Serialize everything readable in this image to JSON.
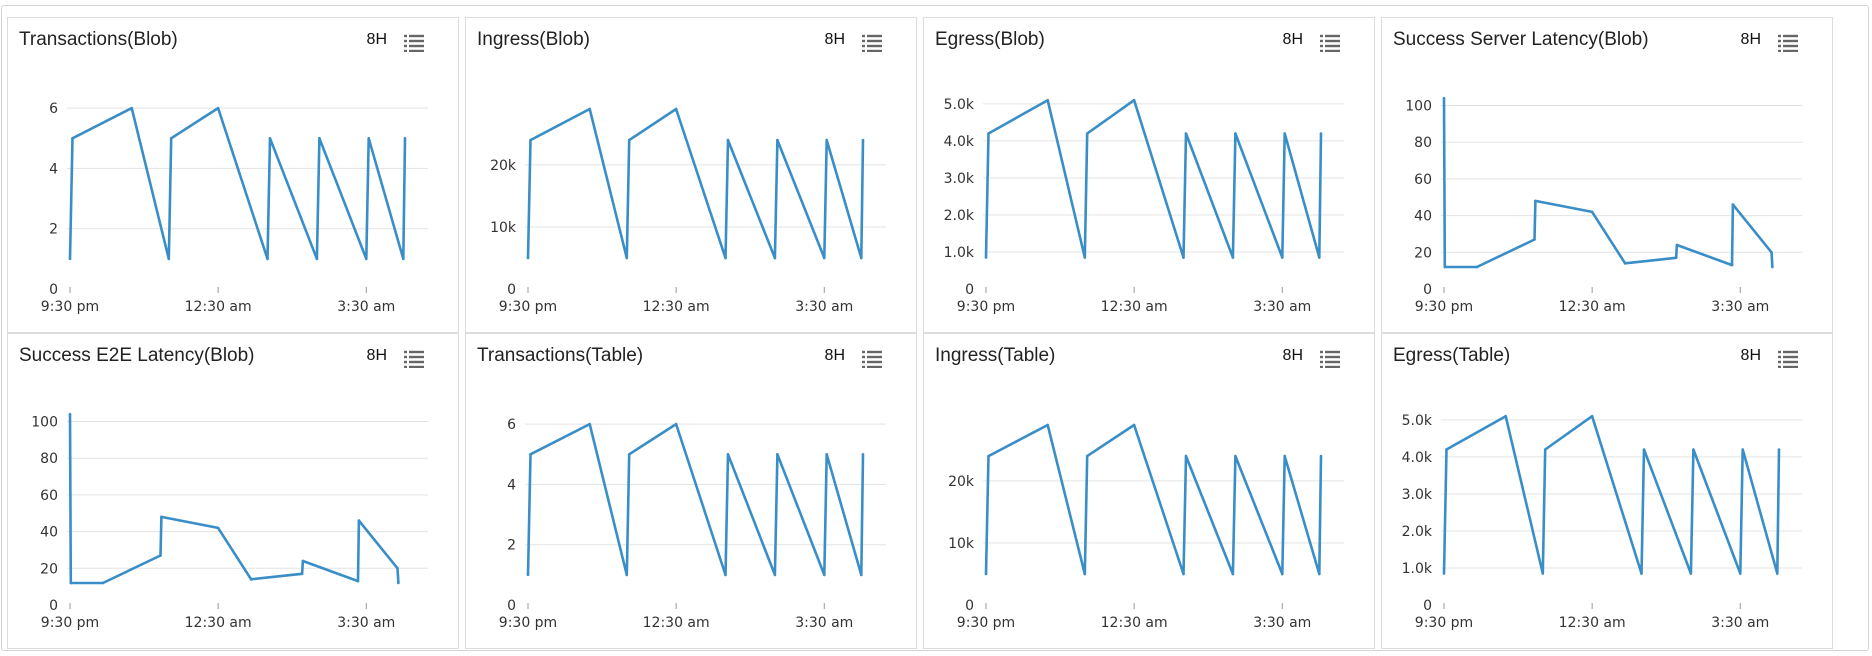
{
  "range_label": "8H",
  "colors": {
    "line": "#3a8ec8",
    "grid": "#e3e3e3",
    "axis": "#cccccc"
  },
  "x_tick_labels": [
    "9:30 pm",
    "12:30 am",
    "3:30 am"
  ],
  "chart_data": [
    {
      "type": "line",
      "title": "Transactions(Blob)",
      "x": [
        "9:30 pm",
        "9:33 pm",
        "10:45 pm",
        "11:30 pm",
        "11:33 pm",
        "12:30 am",
        "1:30 am",
        "1:33 am",
        "2:30 am",
        "2:33 am",
        "3:30 am",
        "3:33 am",
        "4:15 am",
        "4:17 am"
      ],
      "values": [
        1,
        5,
        6,
        1,
        5,
        6,
        1,
        5,
        1,
        5,
        1,
        5,
        1,
        5
      ],
      "yticks": [
        0,
        2,
        4,
        6
      ],
      "ytick_labels": [
        "0",
        "2",
        "4",
        "6"
      ],
      "ylim": [
        0,
        7
      ],
      "grid": true
    },
    {
      "type": "line",
      "title": "Ingress(Blob)",
      "x": [
        "9:30 pm",
        "9:33 pm",
        "10:45 pm",
        "11:30 pm",
        "11:33 pm",
        "12:30 am",
        "1:30 am",
        "1:33 am",
        "2:30 am",
        "2:33 am",
        "3:30 am",
        "3:33 am",
        "4:15 am",
        "4:17 am"
      ],
      "values": [
        5000,
        24000,
        29000,
        5000,
        24000,
        29000,
        5000,
        24000,
        5000,
        24000,
        5000,
        24000,
        5000,
        24000
      ],
      "yticks": [
        0,
        10000,
        20000
      ],
      "ytick_labels": [
        "0",
        "10k",
        "20k"
      ],
      "ylim": [
        0,
        34000
      ],
      "grid": true
    },
    {
      "type": "line",
      "title": "Egress(Blob)",
      "x": [
        "9:30 pm",
        "9:33 pm",
        "10:45 pm",
        "11:30 pm",
        "11:33 pm",
        "12:30 am",
        "1:30 am",
        "1:33 am",
        "2:30 am",
        "2:33 am",
        "3:30 am",
        "3:33 am",
        "4:15 am",
        "4:17 am"
      ],
      "values": [
        850,
        4200,
        5100,
        850,
        4200,
        5100,
        850,
        4200,
        850,
        4200,
        850,
        4200,
        850,
        4200
      ],
      "yticks": [
        0,
        1000,
        2000,
        3000,
        4000,
        5000
      ],
      "ytick_labels": [
        "0",
        "1.0k",
        "2.0k",
        "3.0k",
        "4.0k",
        "5.0k"
      ],
      "ylim": [
        0,
        5700
      ],
      "grid": true
    },
    {
      "type": "line",
      "title": "Success Server Latency(Blob)",
      "x": [
        "9:30 pm",
        "9:31 pm",
        "10:10 pm",
        "11:20 pm",
        "11:21 pm",
        "12:30 am",
        "1:10 am",
        "2:12 am",
        "2:13 am",
        "3:20 am",
        "3:21 am",
        "4:08 am",
        "4:09 am"
      ],
      "values": [
        104,
        12,
        12,
        27,
        48,
        42,
        14,
        17,
        24,
        13,
        46,
        20,
        12
      ],
      "yticks": [
        0,
        20,
        40,
        60,
        80,
        100
      ],
      "ytick_labels": [
        "0",
        "20",
        "40",
        "60",
        "80",
        "100"
      ],
      "ylim": [
        0,
        115
      ],
      "grid": true
    },
    {
      "type": "line",
      "title": "Success E2E Latency(Blob)",
      "x": [
        "9:30 pm",
        "9:31 pm",
        "10:10 pm",
        "11:20 pm",
        "11:21 pm",
        "12:30 am",
        "1:10 am",
        "2:12 am",
        "2:13 am",
        "3:20 am",
        "3:21 am",
        "4:08 am",
        "4:09 am"
      ],
      "values": [
        104,
        12,
        12,
        27,
        48,
        42,
        14,
        17,
        24,
        13,
        46,
        20,
        12
      ],
      "yticks": [
        0,
        20,
        40,
        60,
        80,
        100
      ],
      "ytick_labels": [
        "0",
        "20",
        "40",
        "60",
        "80",
        "100"
      ],
      "ylim": [
        0,
        115
      ],
      "grid": true
    },
    {
      "type": "line",
      "title": "Transactions(Table)",
      "x": [
        "9:30 pm",
        "9:33 pm",
        "10:45 pm",
        "11:30 pm",
        "11:33 pm",
        "12:30 am",
        "1:30 am",
        "1:33 am",
        "2:30 am",
        "2:33 am",
        "3:30 am",
        "3:33 am",
        "4:15 am",
        "4:17 am"
      ],
      "values": [
        1,
        5,
        6,
        1,
        5,
        6,
        1,
        5,
        1,
        5,
        1,
        5,
        1,
        5
      ],
      "yticks": [
        0,
        2,
        4,
        6
      ],
      "ytick_labels": [
        "0",
        "2",
        "4",
        "6"
      ],
      "ylim": [
        0,
        7
      ],
      "grid": true
    },
    {
      "type": "line",
      "title": "Ingress(Table)",
      "x": [
        "9:30 pm",
        "9:33 pm",
        "10:45 pm",
        "11:30 pm",
        "11:33 pm",
        "12:30 am",
        "1:30 am",
        "1:33 am",
        "2:30 am",
        "2:33 am",
        "3:30 am",
        "3:33 am",
        "4:15 am",
        "4:17 am"
      ],
      "values": [
        5000,
        24000,
        29000,
        5000,
        24000,
        29000,
        5000,
        24000,
        5000,
        24000,
        5000,
        24000,
        5000,
        24000
      ],
      "yticks": [
        0,
        10000,
        20000
      ],
      "ytick_labels": [
        "0",
        "10k",
        "20k"
      ],
      "ylim": [
        0,
        34000
      ],
      "grid": true
    },
    {
      "type": "line",
      "title": "Egress(Table)",
      "x": [
        "9:30 pm",
        "9:33 pm",
        "10:45 pm",
        "11:30 pm",
        "11:33 pm",
        "12:30 am",
        "1:30 am",
        "1:33 am",
        "2:30 am",
        "2:33 am",
        "3:30 am",
        "3:33 am",
        "4:15 am",
        "4:17 am"
      ],
      "values": [
        850,
        4200,
        5100,
        850,
        4200,
        5100,
        850,
        4200,
        850,
        4200,
        850,
        4200,
        850,
        4200
      ],
      "yticks": [
        0,
        1000,
        2000,
        3000,
        4000,
        5000
      ],
      "ytick_labels": [
        "0",
        "1.0k",
        "2.0k",
        "3.0k",
        "4.0k",
        "5.0k"
      ],
      "ylim": [
        0,
        5700
      ],
      "grid": true
    }
  ]
}
